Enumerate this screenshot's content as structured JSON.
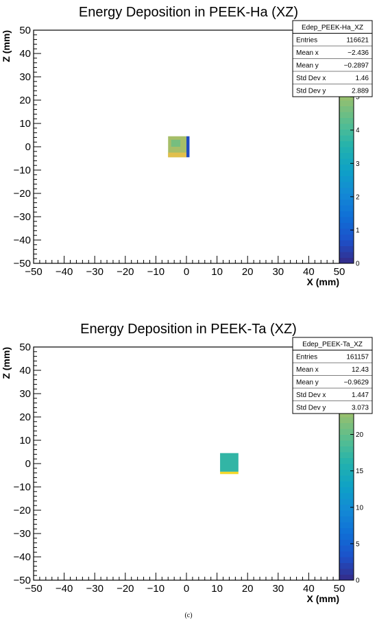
{
  "caption": "(c)",
  "chart_data": [
    {
      "type": "heatmap",
      "title": "Energy Deposition in PEEK-Ha (XZ)",
      "xlabel": "X (mm)",
      "ylabel": "Z (mm)",
      "xlim": [
        -50,
        50
      ],
      "ylim": [
        -50,
        50
      ],
      "x_ticks": [
        "−50",
        "−40",
        "−30",
        "−20",
        "−10",
        "0",
        "10",
        "20",
        "30",
        "40",
        "50"
      ],
      "y_ticks": [
        "−50",
        "−40",
        "−30",
        "−20",
        "−10",
        "0",
        "10",
        "20",
        "30",
        "40",
        "50"
      ],
      "z_range": [
        0,
        7
      ],
      "palette_ticks": [
        "0",
        "1",
        "2",
        "3",
        "4",
        "5",
        "6"
      ],
      "stats": {
        "name": "Edep_PEEK-Ha_XZ",
        "rows": [
          {
            "label": "Entries",
            "value": "116621"
          },
          {
            "label": "Mean x",
            "value": "−2.436"
          },
          {
            "label": "Mean y",
            "value": "−0.2897"
          },
          {
            "label": "Std Dev x",
            "value": "1.46"
          },
          {
            "label": "Std Dev y",
            "value": "2.889"
          }
        ]
      },
      "cells": [
        {
          "x0": -6,
          "x1": 0,
          "z0": -4.5,
          "z1": 4.5,
          "value": 5.2
        },
        {
          "x0": -6,
          "x1": 0,
          "z0": -4.5,
          "z1": -2.5,
          "value": 6.2
        },
        {
          "x0": -5,
          "x1": -2,
          "z0": 0,
          "z1": 3,
          "value": 4.6
        },
        {
          "x0": 0,
          "x1": 1,
          "z0": -4.5,
          "z1": 4.5,
          "value": 0.6
        }
      ]
    },
    {
      "type": "heatmap",
      "title": "Energy Deposition in PEEK-Ta (XZ)",
      "xlabel": "X (mm)",
      "ylabel": "Z (mm)",
      "xlim": [
        -50,
        50
      ],
      "ylim": [
        -50,
        50
      ],
      "x_ticks": [
        "−50",
        "−40",
        "−30",
        "−20",
        "−10",
        "0",
        "10",
        "20",
        "30",
        "40",
        "50"
      ],
      "y_ticks": [
        "−50",
        "−40",
        "−30",
        "−20",
        "−10",
        "0",
        "10",
        "20",
        "30",
        "40",
        "50"
      ],
      "z_range": [
        0,
        32
      ],
      "palette_ticks": [
        "0",
        "5",
        "10",
        "15",
        "20",
        "25",
        "30"
      ],
      "stats": {
        "name": "Edep_PEEK-Ta_XZ",
        "rows": [
          {
            "label": "Entries",
            "value": "161157"
          },
          {
            "label": "Mean x",
            "value": "12.43"
          },
          {
            "label": "Mean y",
            "value": "−0.9629"
          },
          {
            "label": "Std Dev x",
            "value": "1.447"
          },
          {
            "label": "Std Dev y",
            "value": "3.073"
          }
        ]
      },
      "cells": [
        {
          "x0": 11,
          "x1": 17,
          "z0": -3.5,
          "z1": 4.5,
          "value": 17
        },
        {
          "x0": 11,
          "x1": 17,
          "z0": -4.5,
          "z1": -3.5,
          "value": 31
        }
      ]
    }
  ]
}
